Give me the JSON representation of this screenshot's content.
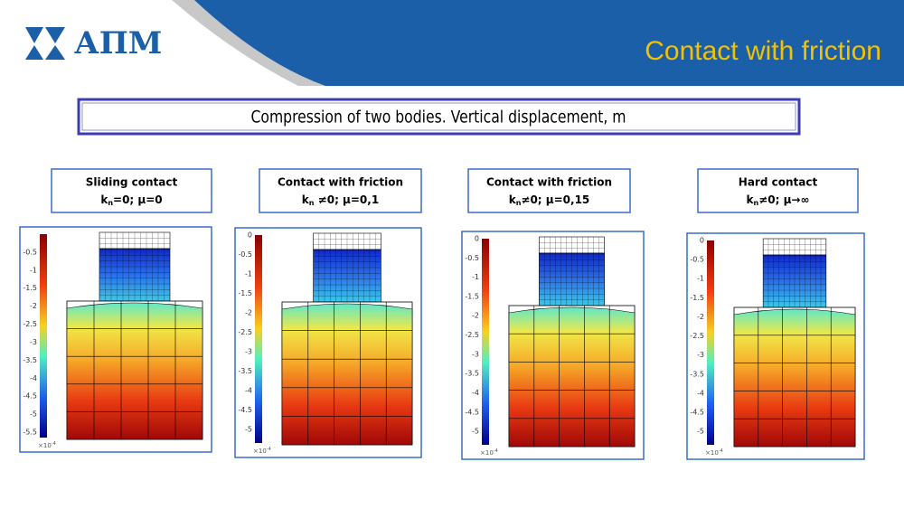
{
  "header": {
    "logo": "АПМ",
    "title": "Contact with friction"
  },
  "subtitle": "Compression of two bodies. Vertical displacement, m",
  "panels": [
    {
      "label": "Sliding contact",
      "formula": {
        "base": "k",
        "sub": "n",
        "rest": "=0; μ=0"
      },
      "ticks": [
        -0.5,
        -1,
        -1.5,
        -2,
        -2.5,
        -3,
        -3.5,
        -4,
        -4.5,
        -5,
        -5.5
      ],
      "exponent": {
        "base": "×10",
        "sup": "-4"
      }
    },
    {
      "label": "Contact with friction",
      "formula": {
        "base": "k",
        "sub": "n",
        "rest": " ≠0; μ=0,1"
      },
      "ticks": [
        0,
        -0.5,
        -1,
        -1.5,
        -2,
        -2.5,
        -3,
        -3.5,
        -4,
        -4.5,
        -5
      ],
      "exponent": {
        "base": "×10",
        "sup": "-4"
      }
    },
    {
      "label": "Contact with friction",
      "formula": {
        "base": "k",
        "sub": "n",
        "rest": "≠0; μ=0,15"
      },
      "ticks": [
        0,
        -0.5,
        -1,
        -1.5,
        -2,
        -2.5,
        -3,
        -3.5,
        -4,
        -4.5,
        -5
      ],
      "exponent": {
        "base": "×10",
        "sup": "-4"
      }
    },
    {
      "label": "Hard contact",
      "formula": {
        "base": "k",
        "sub": "n",
        "rest": "≠0; μ→∞"
      },
      "ticks": [
        0,
        -0.5,
        -1,
        -1.5,
        -2,
        -2.5,
        -3,
        -3.5,
        -4,
        -4.5,
        -5
      ],
      "exponent": {
        "base": "×10",
        "sup": "-4"
      }
    }
  ]
}
